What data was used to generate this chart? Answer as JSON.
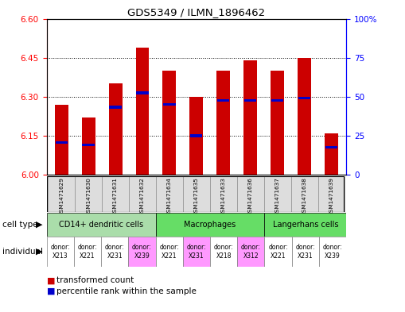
{
  "title": "GDS5349 / ILMN_1896462",
  "samples": [
    "GSM1471629",
    "GSM1471630",
    "GSM1471631",
    "GSM1471632",
    "GSM1471634",
    "GSM1471635",
    "GSM1471633",
    "GSM1471636",
    "GSM1471637",
    "GSM1471638",
    "GSM1471639"
  ],
  "red_values": [
    6.27,
    6.22,
    6.35,
    6.49,
    6.4,
    6.3,
    6.4,
    6.44,
    6.4,
    6.45,
    6.16
  ],
  "blue_values": [
    6.125,
    6.115,
    6.26,
    6.315,
    6.27,
    6.15,
    6.285,
    6.285,
    6.285,
    6.295,
    6.105
  ],
  "y_min": 6.0,
  "y_max": 6.6,
  "y_ticks": [
    6.0,
    6.15,
    6.3,
    6.45,
    6.6
  ],
  "y2_ticks": [
    0,
    25,
    50,
    75,
    100
  ],
  "cell_groups": [
    {
      "label": "CD14+ dendritic cells",
      "start": 0,
      "end": 4,
      "color": "#aaddaa"
    },
    {
      "label": "Macrophages",
      "start": 4,
      "end": 8,
      "color": "#66dd66"
    },
    {
      "label": "Langerhans cells",
      "start": 8,
      "end": 11,
      "color": "#66dd66"
    }
  ],
  "ind_colors": [
    "#ffffff",
    "#ffffff",
    "#ffffff",
    "#ff99ff",
    "#ffffff",
    "#ff99ff",
    "#ffffff",
    "#ff99ff",
    "#ffffff",
    "#ffffff",
    "#ffffff"
  ],
  "ind_labels": [
    "donor:\nX213",
    "donor:\nX221",
    "donor:\nX231",
    "donor:\nX239",
    "donor:\nX221",
    "donor:\nX231",
    "donor:\nX218",
    "donor:\nX312",
    "donor:\nX221",
    "donor:\nX231",
    "donor:\nX239"
  ],
  "bar_width": 0.5,
  "red_color": "#CC0000",
  "blue_color": "#0000CC",
  "bg_color": "#ffffff",
  "legend_red": "transformed count",
  "legend_blue": "percentile rank within the sample",
  "sample_bg_color": "#dddddd"
}
